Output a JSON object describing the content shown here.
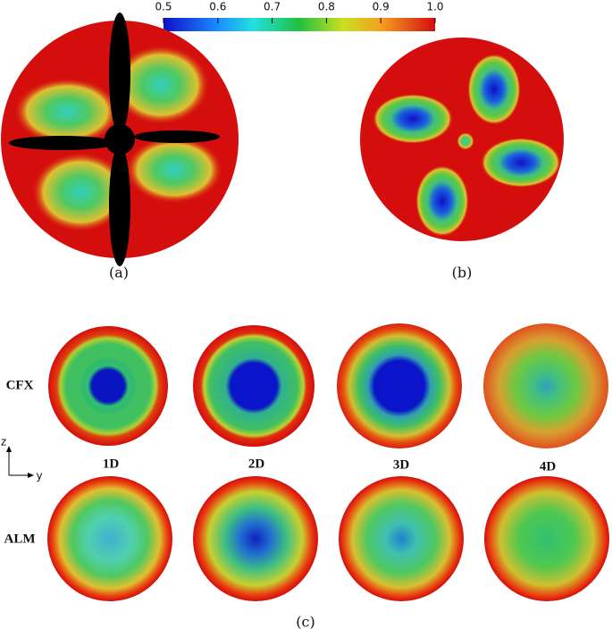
{
  "colorbar": {
    "lim": [
      0.5,
      1
    ],
    "ticks": [
      0.5,
      0.6,
      0.7,
      0.8,
      0.9,
      {
        "value": 1,
        "label": "1.0"
      }
    ]
  },
  "panels": {
    "a": "(a)",
    "b": "(b)",
    "c": "(c)"
  },
  "rows": [
    "CFX",
    "ALM"
  ],
  "distances": [
    "1D",
    "2D",
    "3D",
    "4D"
  ],
  "axes": {
    "vertical": "z",
    "horizontal": "y"
  }
}
